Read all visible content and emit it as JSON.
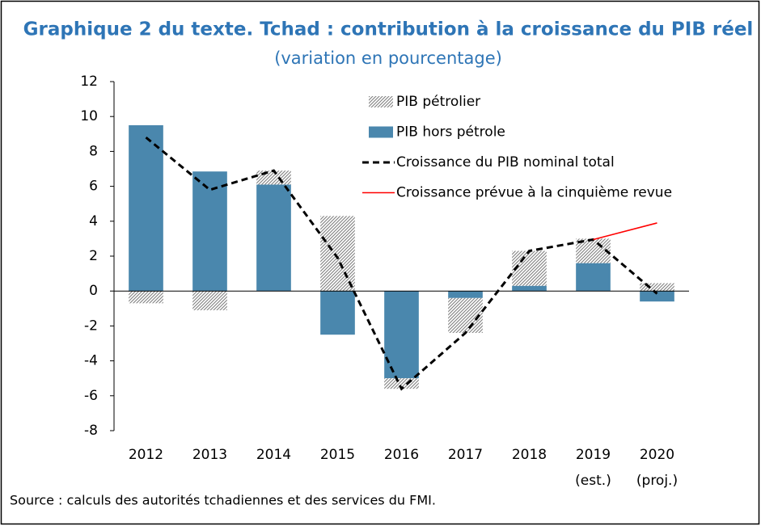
{
  "chart_data": {
    "type": "bar",
    "title": "Graphique 2 du texte. Tchad : contribution à la croissance du PIB réel",
    "subtitle": "(variation en pourcentage)",
    "source": "Source : calculs des autorités tchadiennes et des services du FMI.",
    "categories": [
      "2012",
      "2013",
      "2014",
      "2015",
      "2016",
      "2017",
      "2018",
      "2019",
      "2020"
    ],
    "category_notes": [
      null,
      null,
      null,
      null,
      null,
      null,
      null,
      "(est.)",
      "(proj.)"
    ],
    "series": [
      {
        "name": "PIB pétrolier",
        "type": "bar",
        "pattern": "hatch",
        "color": "#7f7f7f",
        "values": [
          -0.7,
          -1.1,
          0.8,
          4.3,
          -0.6,
          -2.0,
          2.0,
          1.4,
          0.45
        ]
      },
      {
        "name": "PIB hors pétrole",
        "type": "bar",
        "color": "#4a87ad",
        "values": [
          9.5,
          6.85,
          6.1,
          -2.5,
          -5.0,
          -0.4,
          0.3,
          1.6,
          -0.6
        ]
      },
      {
        "name": "Croissance du PIB nominal total",
        "type": "line",
        "dashed": true,
        "color": "#000000",
        "values": [
          8.8,
          5.8,
          6.9,
          1.9,
          -5.6,
          -2.4,
          2.3,
          2.95,
          -0.15
        ]
      },
      {
        "name": "Croissance prévue à la cinquième revue",
        "type": "line",
        "dashed": false,
        "color": "#ff0000",
        "values": [
          null,
          null,
          null,
          null,
          null,
          null,
          null,
          2.95,
          3.9
        ]
      }
    ],
    "ylim": [
      -8,
      12
    ],
    "yticks": [
      -8,
      -6,
      -4,
      -2,
      0,
      2,
      4,
      6,
      8,
      10,
      12
    ],
    "grid": false
  }
}
